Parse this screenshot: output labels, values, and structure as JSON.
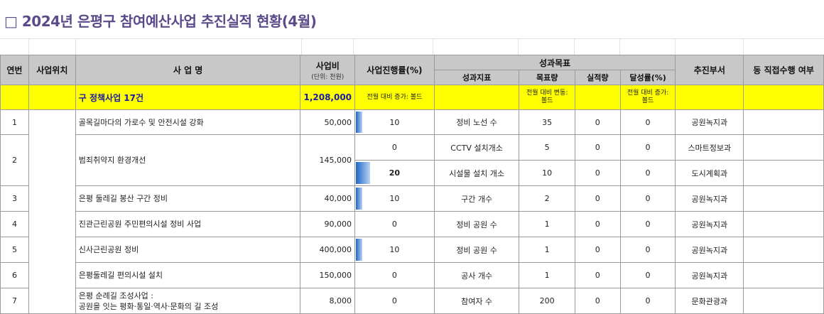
{
  "title": "□ 2024년 은평구 참여예산사업 추진실적 현황(4월)",
  "headers": {
    "no": "연번",
    "location": "사업위치",
    "name": "사 업 명",
    "budget": "사업비",
    "budget_unit": "(단위: 천원)",
    "progress": "사업진행률(%)",
    "goal_group": "성과목표",
    "indicator": "성과지표",
    "target": "목표량",
    "actual": "실적량",
    "achievement": "달성률(%)",
    "dept": "추진부서",
    "direct": "동 직접수행 여부"
  },
  "summary": {
    "name": "구 정책사업 17건",
    "budget": "1,208,000",
    "progress_note": "전월 대비 증가: 볼드",
    "target_note": "전월 대비 변동: 볼드",
    "achievement_note": "전월 대비 증가: 볼드"
  },
  "rows": [
    {
      "no": "1",
      "name": "골목길마다의 가로수 및 안전시설 강화",
      "budget": "50,000",
      "progress": "10",
      "progress_fraction": 0.1,
      "indicator": "정비 노선 수",
      "target": "35",
      "actual": "0",
      "achievement": "0",
      "dept": "공원녹지과"
    },
    {
      "no": "2",
      "name": "범죄취약지 환경개선",
      "budget": "145,000",
      "sub": [
        {
          "progress": "0",
          "progress_fraction": 0,
          "indicator": "CCTV 설치개소",
          "target": "5",
          "actual": "0",
          "achievement": "0",
          "dept": "스마트정보과"
        },
        {
          "progress": "20",
          "progress_fraction": 0.2,
          "indicator": "시설물 설치 개소",
          "target": "10",
          "actual": "0",
          "achievement": "0",
          "dept": "도시계획과"
        }
      ]
    },
    {
      "no": "3",
      "name": "은평 둘레길 봉산 구간 정비",
      "budget": "40,000",
      "progress": "10",
      "progress_fraction": 0.1,
      "indicator": "구간 개수",
      "target": "2",
      "actual": "0",
      "achievement": "0",
      "dept": "공원녹지과"
    },
    {
      "no": "4",
      "name": "진관근린공원 주민편의시설 정비 사업",
      "budget": "90,000",
      "progress": "0",
      "progress_fraction": 0,
      "indicator": "정비 공원 수",
      "target": "1",
      "actual": "0",
      "achievement": "0",
      "dept": "공원녹지과"
    },
    {
      "no": "5",
      "name": "신사근린공원 정비",
      "budget": "400,000",
      "progress": "10",
      "progress_fraction": 0.1,
      "indicator": "정비 공원 수",
      "target": "1",
      "actual": "0",
      "achievement": "0",
      "dept": "공원녹지과"
    },
    {
      "no": "6",
      "name": "은평둘레길 편의시설 설치",
      "budget": "150,000",
      "progress": "0",
      "progress_fraction": 0,
      "indicator": "공사 개수",
      "target": "1",
      "actual": "0",
      "achievement": "0",
      "dept": "공원녹지과"
    },
    {
      "no": "7",
      "name_line1": "은평 순례길 조성사업 :",
      "name_line2": "공원을 잇는 평화·통일·역사·문화의 길 조성",
      "budget": "8,000",
      "progress": "0",
      "progress_fraction": 0,
      "indicator": "참여자 수",
      "target": "200",
      "actual": "0",
      "achievement": "0",
      "dept": "문화관광과"
    }
  ]
}
